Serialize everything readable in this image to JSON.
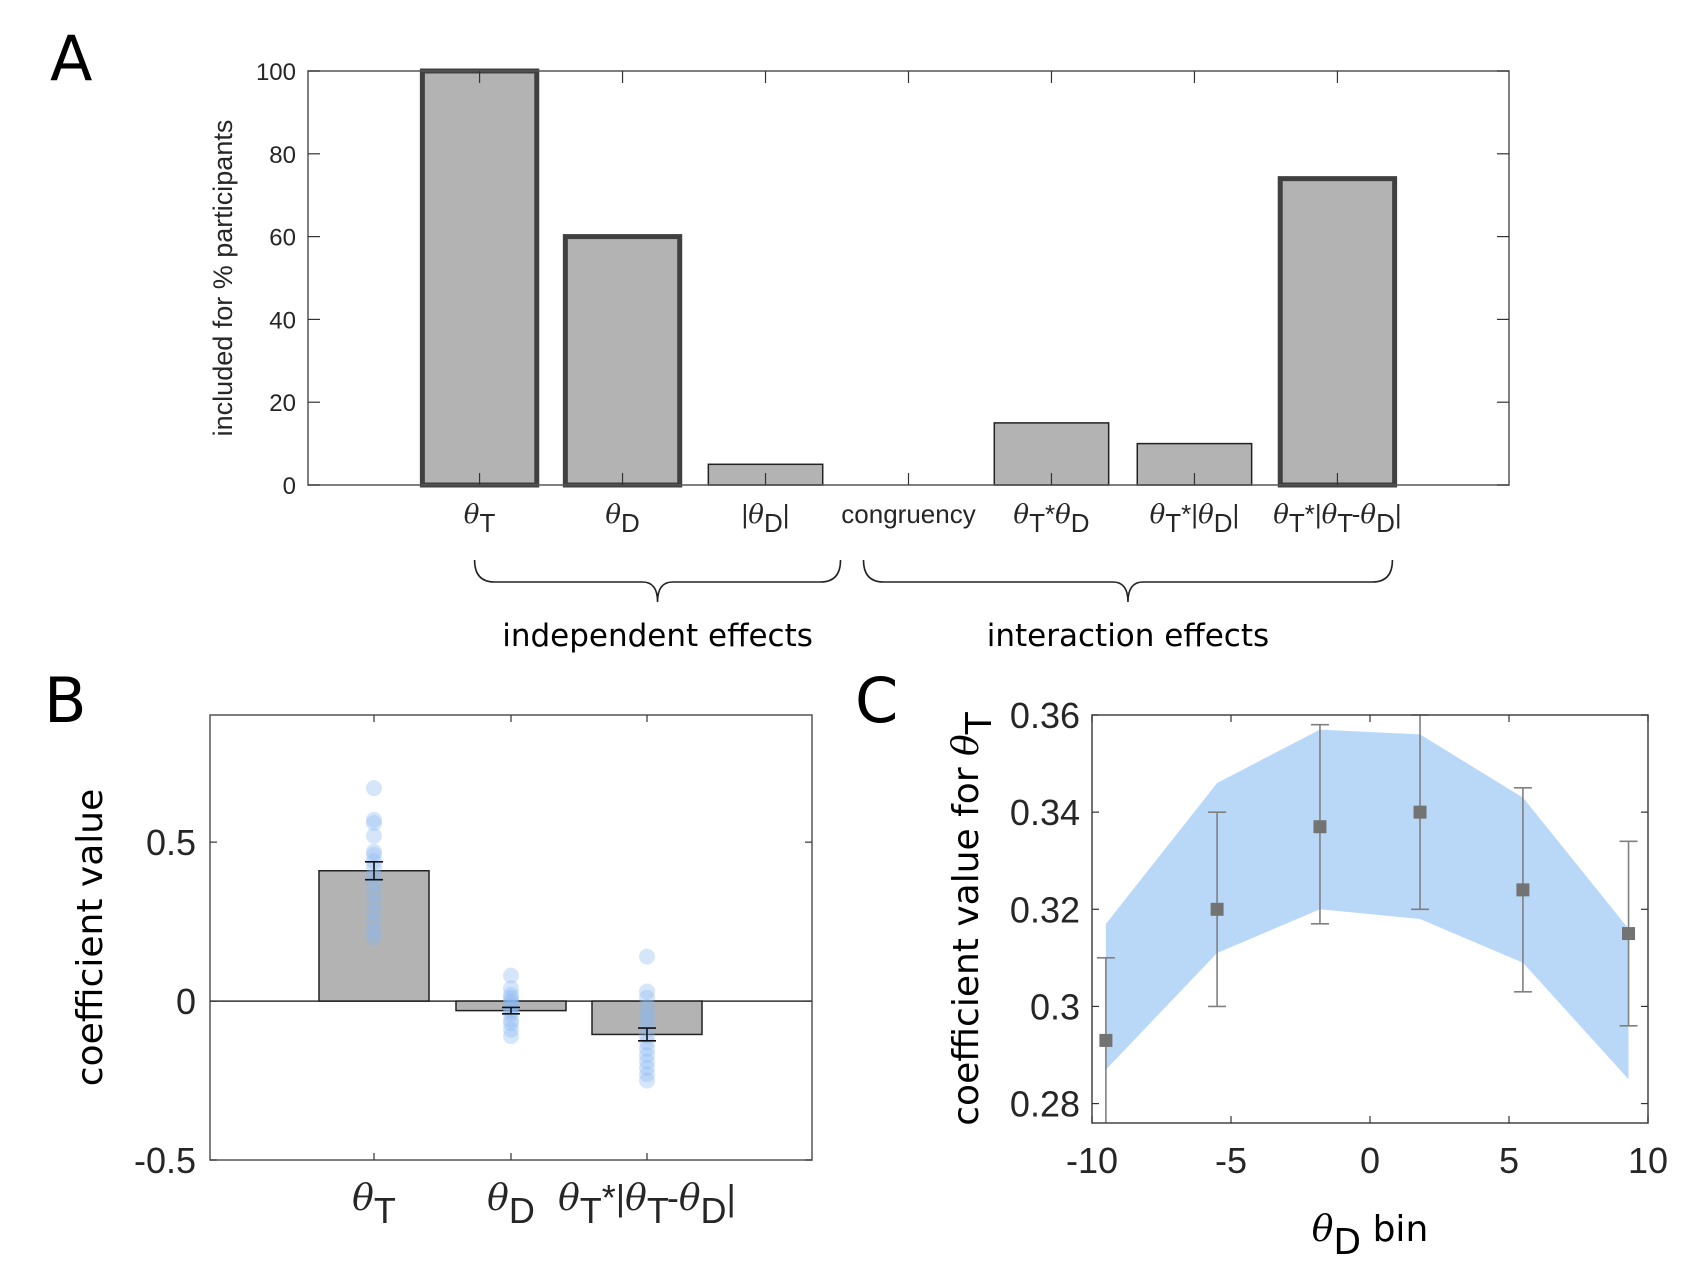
{
  "figure": {
    "panels": [
      "A",
      "B",
      "C"
    ]
  },
  "chart_data": [
    {
      "panel": "A",
      "type": "bar",
      "title": "",
      "xlabel": "",
      "ylabel": "included for % participants",
      "ylim": [
        0,
        100
      ],
      "yticks": [
        "0",
        "20",
        "40",
        "60",
        "80",
        "100"
      ],
      "yticks_values": [
        0,
        20,
        40,
        60,
        80,
        100
      ],
      "categories": [
        {
          "base": "θ",
          "sub": "T",
          "label": "θT"
        },
        {
          "base": "θ",
          "sub": "D",
          "label": "θD"
        },
        {
          "label": "|θD|"
        },
        {
          "label": "congruency"
        },
        {
          "label": "θT*θD"
        },
        {
          "label": "θT*|θD|"
        },
        {
          "label": "θT*|θT-θD|"
        }
      ],
      "values": [
        100,
        60,
        5,
        0,
        15,
        10,
        74
      ],
      "highlighted": [
        true,
        true,
        false,
        false,
        false,
        false,
        true
      ],
      "groups": [
        {
          "label": "independent effects",
          "from": 0,
          "to": 2
        },
        {
          "label": "interaction effects",
          "from": 3,
          "to": 6
        }
      ],
      "bar_color": "#b3b3b3",
      "edge_color": "#404040"
    },
    {
      "panel": "B",
      "type": "bar",
      "title": "",
      "xlabel": "",
      "ylabel": "coefficient value",
      "ylim": [
        -0.5,
        0.9
      ],
      "yticks": [
        "-0.5",
        "0",
        "0.5"
      ],
      "yticks_values": [
        -0.5,
        0,
        0.5
      ],
      "categories": [
        "θT",
        "θD",
        "θT*|θT-θD|"
      ],
      "values": [
        0.41,
        -0.03,
        -0.105
      ],
      "errors": [
        0.028,
        0.01,
        0.02
      ],
      "participant_points": [
        [
          0.67,
          0.57,
          0.56,
          0.52,
          0.47,
          0.46,
          0.44,
          0.42,
          0.39,
          0.37,
          0.34,
          0.31,
          0.28,
          0.25,
          0.22,
          0.2
        ],
        [
          0.08,
          0.04,
          0.02,
          0.01,
          0.0,
          -0.01,
          -0.02,
          -0.03,
          -0.04,
          -0.06,
          -0.07,
          -0.09,
          -0.11
        ],
        [
          0.14,
          0.03,
          0.01,
          -0.02,
          -0.04,
          -0.06,
          -0.08,
          -0.11,
          -0.13,
          -0.15,
          -0.17,
          -0.19,
          -0.21,
          -0.23,
          -0.25
        ]
      ],
      "bar_color": "#b3b3b3",
      "point_color": "#8ab8f0"
    },
    {
      "panel": "C",
      "type": "line",
      "title": "",
      "xlabel": "θD bin",
      "ylabel": "coefficient value for θT",
      "xlim": [
        -10,
        10
      ],
      "ylim": [
        0.276,
        0.36
      ],
      "xticks": [
        "-10",
        "-5",
        "0",
        "5",
        "10"
      ],
      "xticks_values": [
        -10,
        -5,
        0,
        5,
        10
      ],
      "yticks": [
        "0.28",
        "0.3",
        "0.32",
        "0.34",
        "0.36"
      ],
      "yticks_values": [
        0.28,
        0.3,
        0.32,
        0.34,
        0.36
      ],
      "series": [
        {
          "name": "bin means",
          "x": [
            -9.5,
            -5.5,
            -1.8,
            1.8,
            5.5,
            9.3
          ],
          "y": [
            0.293,
            0.32,
            0.337,
            0.34,
            0.324,
            0.315
          ],
          "err_low": [
            0.274,
            0.3,
            0.317,
            0.32,
            0.303,
            0.296
          ],
          "err_high": [
            0.31,
            0.34,
            0.358,
            0.36,
            0.345,
            0.334
          ],
          "color": "#737373"
        },
        {
          "name": "model band",
          "x": [
            -9.5,
            -5.5,
            -1.8,
            1.8,
            5.5,
            9.3
          ],
          "lower": [
            0.287,
            0.311,
            0.32,
            0.318,
            0.309,
            0.285
          ],
          "upper": [
            0.317,
            0.346,
            0.357,
            0.356,
            0.343,
            0.316
          ],
          "color": "#b9d8f8"
        }
      ]
    }
  ]
}
